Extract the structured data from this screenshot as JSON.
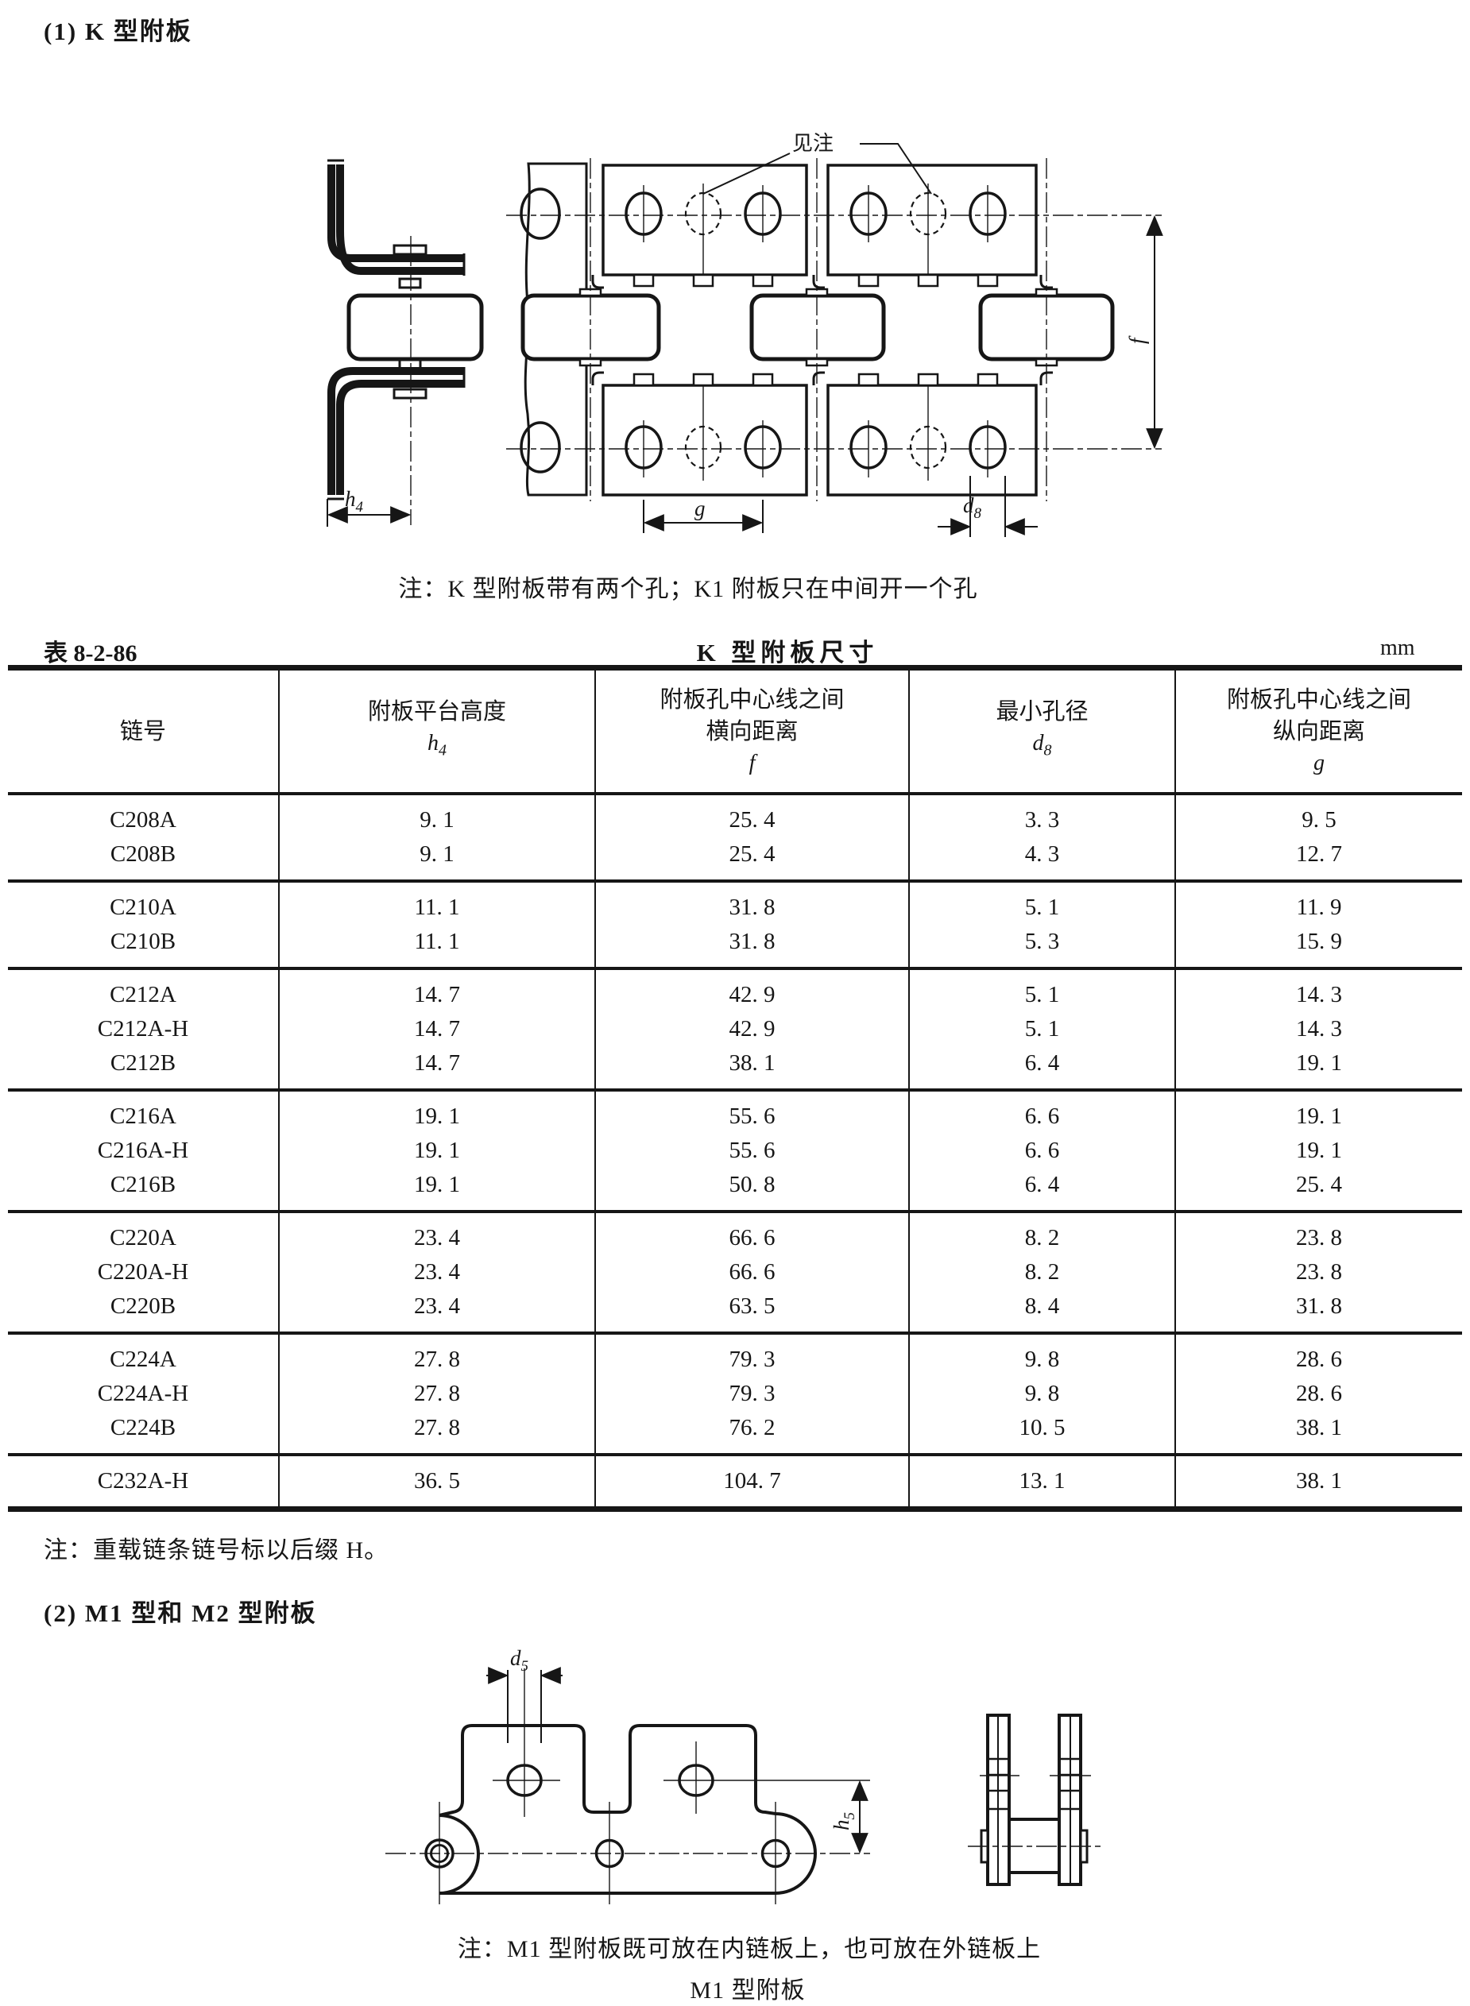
{
  "sections": {
    "s1_title": "(1) K 型附板",
    "s2_title": "(2) M1 型和 M2 型附板"
  },
  "figure_k": {
    "see_note_label": "见注",
    "note": "注：K 型附板带有两个孔；K1 附板只在中间开一个孔",
    "dims": {
      "h4_sym": "h",
      "h4_sub": "4",
      "f_sym": "f",
      "g_sym": "g",
      "d8_sym": "d",
      "d8_sub": "8"
    }
  },
  "table": {
    "label": "表 8-2-86",
    "title": "K 型附板尺寸",
    "unit": "mm",
    "header": {
      "col1": "链号",
      "col2_text": "附板平台高度",
      "col2_sym": "h",
      "col2_sub": "4",
      "col3_text1": "附板孔中心线之间",
      "col3_text2": "横向距离",
      "col3_sym": "f",
      "col4_text": "最小孔径",
      "col4_sym": "d",
      "col4_sub": "8",
      "col5_text1": "附板孔中心线之间",
      "col5_text2": "纵向距离",
      "col5_sym": "g"
    },
    "groups": [
      {
        "rows": [
          [
            "C208A",
            "9. 1",
            "25. 4",
            "3. 3",
            "9. 5"
          ],
          [
            "C208B",
            "9. 1",
            "25. 4",
            "4. 3",
            "12. 7"
          ]
        ]
      },
      {
        "rows": [
          [
            "C210A",
            "11. 1",
            "31. 8",
            "5. 1",
            "11. 9"
          ],
          [
            "C210B",
            "11. 1",
            "31. 8",
            "5. 3",
            "15. 9"
          ]
        ]
      },
      {
        "rows": [
          [
            "C212A",
            "14. 7",
            "42. 9",
            "5. 1",
            "14. 3"
          ],
          [
            "C212A-H",
            "14. 7",
            "42. 9",
            "5. 1",
            "14. 3"
          ],
          [
            "C212B",
            "14. 7",
            "38. 1",
            "6. 4",
            "19. 1"
          ]
        ]
      },
      {
        "rows": [
          [
            "C216A",
            "19. 1",
            "55. 6",
            "6. 6",
            "19. 1"
          ],
          [
            "C216A-H",
            "19. 1",
            "55. 6",
            "6. 6",
            "19. 1"
          ],
          [
            "C216B",
            "19. 1",
            "50. 8",
            "6. 4",
            "25. 4"
          ]
        ]
      },
      {
        "rows": [
          [
            "C220A",
            "23. 4",
            "66. 6",
            "8. 2",
            "23. 8"
          ],
          [
            "C220A-H",
            "23. 4",
            "66. 6",
            "8. 2",
            "23. 8"
          ],
          [
            "C220B",
            "23. 4",
            "63. 5",
            "8. 4",
            "31. 8"
          ]
        ]
      },
      {
        "rows": [
          [
            "C224A",
            "27. 8",
            "79. 3",
            "9. 8",
            "28. 6"
          ],
          [
            "C224A-H",
            "27. 8",
            "79. 3",
            "9. 8",
            "28. 6"
          ],
          [
            "C224B",
            "27. 8",
            "76. 2",
            "10. 5",
            "38. 1"
          ]
        ]
      },
      {
        "rows": [
          [
            "C232A-H",
            "36. 5",
            "104. 7",
            "13. 1",
            "38. 1"
          ]
        ]
      }
    ],
    "note": "注：重载链条链号标以后缀 H。"
  },
  "figure_m1": {
    "dims": {
      "d5_sym": "d",
      "d5_sub": "5",
      "h5_sym": "h",
      "h5_sub": "5"
    },
    "note": "注：M1 型附板既可放在内链板上，也可放在外链板上",
    "caption": "M1 型附板"
  },
  "colors": {
    "ink": "#161616",
    "paper": "#ffffff"
  }
}
